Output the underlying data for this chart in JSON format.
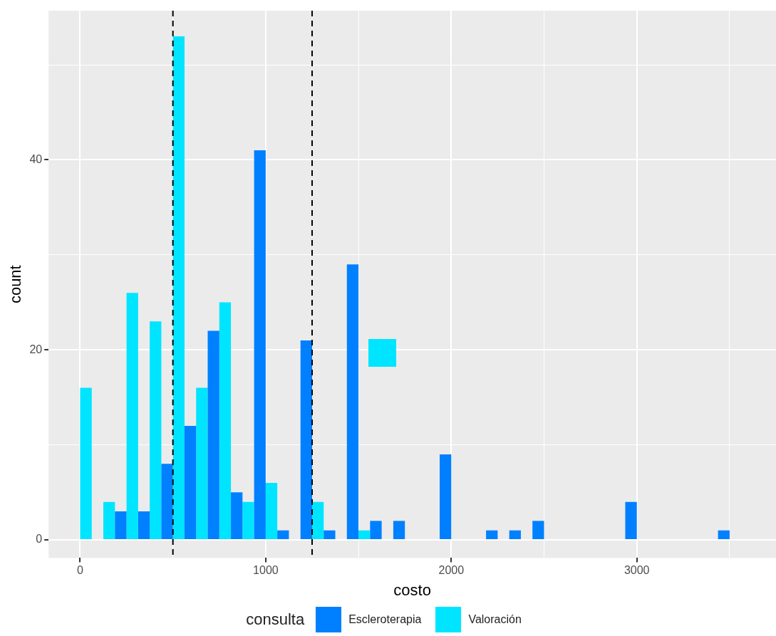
{
  "chart_data": {
    "type": "histogram",
    "bins": [
      -62.5,
      62.5,
      187.5,
      312.5,
      437.5,
      562.5,
      687.5,
      812.5,
      937.5,
      1062.5,
      1187.5,
      1312.5,
      1437.5,
      1562.5,
      1687.5,
      1812.5,
      1937.5,
      2062.5,
      2187.5,
      2312.5,
      2437.5,
      2562.5,
      2687.5,
      2812.5,
      2937.5,
      3062.5,
      3187.5,
      3312.5,
      3437.5,
      3562.5
    ],
    "series": [
      {
        "name": "Escleroterapia",
        "color": "#0080ff",
        "values": [
          0,
          0,
          3,
          3,
          8,
          12,
          22,
          5,
          41,
          1,
          21,
          1,
          29,
          2,
          2,
          0,
          9,
          0,
          1,
          1,
          2,
          0,
          0,
          0,
          4,
          0,
          0,
          0,
          1
        ]
      },
      {
        "name": "Valoración",
        "color": "#00e5ff",
        "values": [
          16,
          4,
          26,
          23,
          53,
          16,
          25,
          4,
          6,
          0,
          4,
          0,
          1,
          0,
          0,
          0,
          0,
          0,
          0,
          0,
          0,
          0,
          0,
          0,
          0,
          0,
          0,
          0,
          0
        ]
      }
    ],
    "xlabel": "costo",
    "ylabel": "count",
    "legend_title": "consulta",
    "xlim": [
      -170,
      3750
    ],
    "ylim": [
      -1.9,
      55.7
    ],
    "xticks": [
      0,
      {
        "value": 500,
        "label": null
      },
      1000,
      {
        "value": 1500,
        "label": null
      },
      2000,
      {
        "value": 2500,
        "label": null
      },
      3000,
      {
        "value": 3500,
        "label": null
      }
    ],
    "yticks": [
      0,
      {
        "value": 10,
        "label": null
      },
      20,
      {
        "value": 30,
        "label": null
      },
      40,
      {
        "value": 50,
        "label": null
      }
    ],
    "ref_lines": [
      {
        "axis": "x",
        "value": 500,
        "color": "#000000",
        "line_style": "dashed"
      },
      {
        "axis": "x",
        "value": 1250,
        "color": "#000000",
        "line_style": "dashed"
      }
    ],
    "grid": true,
    "legend": "bottom"
  }
}
